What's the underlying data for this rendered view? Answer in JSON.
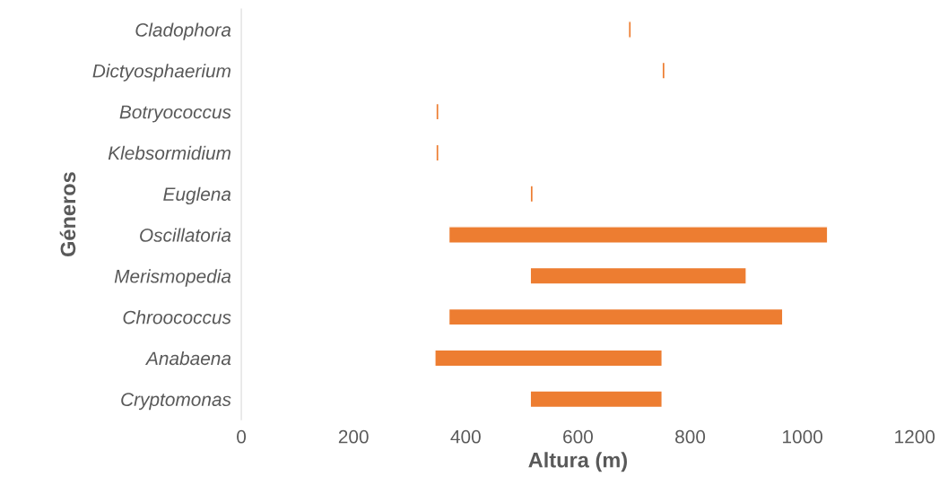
{
  "chart_data": {
    "type": "bar",
    "orientation": "horizontal",
    "xlabel": "Altura (m)",
    "ylabel": "Géneros",
    "categories": [
      "Cladophora",
      "Dictyosphaerium",
      "Botryococcus",
      "Klebsormidium",
      "Euglena",
      "Oscillatoria",
      "Merismopedia",
      "Chroococcus",
      "Anabaena",
      "Cryptomonas"
    ],
    "base": [
      690,
      750,
      347,
      347,
      515,
      370,
      515,
      370,
      345,
      515
    ],
    "values": [
      5,
      5,
      5,
      5,
      5,
      675,
      385,
      595,
      405,
      235
    ],
    "color": "#ed7d31",
    "xlim": [
      0,
      1200
    ],
    "xticks": [
      0,
      200,
      400,
      600,
      800,
      1000,
      1200
    ],
    "grid": false
  }
}
